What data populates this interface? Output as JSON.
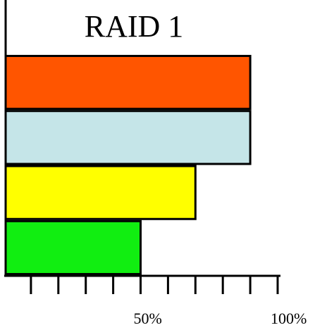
{
  "chart_data": {
    "type": "bar",
    "orientation": "horizontal",
    "title": "RAID 1",
    "categories": [
      null,
      null,
      null,
      null
    ],
    "values": [
      90,
      90,
      70,
      50
    ],
    "colors": [
      "#ff5500",
      "#c5e5e8",
      "#ffff00",
      "#11ee11"
    ],
    "xlim": [
      0,
      100
    ],
    "xticks": [
      10,
      20,
      30,
      40,
      50,
      60,
      70,
      80,
      90,
      100
    ],
    "xtick_labels": [
      {
        "value": 50,
        "label": "50%"
      },
      {
        "value": 100,
        "label": "100%"
      }
    ]
  }
}
